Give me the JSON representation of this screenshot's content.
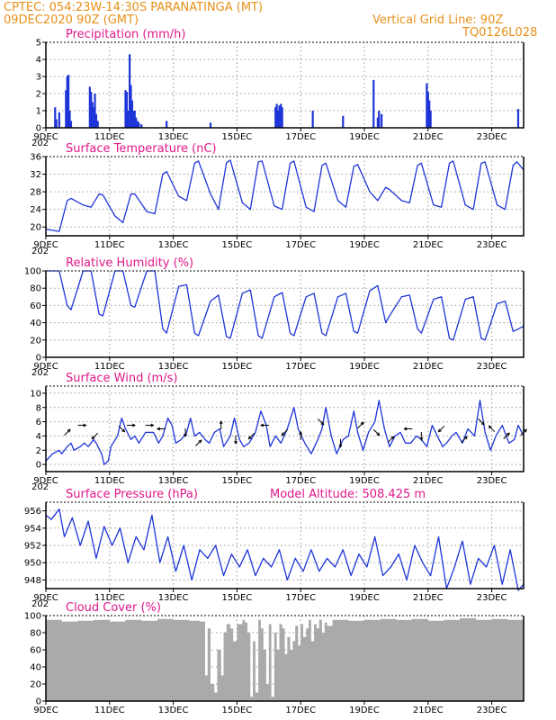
{
  "header": {
    "line1_left": "CPTEC:   054:23W-14:30S   PARANATINGA (MT)",
    "line2_left": "09DEC2020 90Z (GMT)",
    "line1_right": "Vertical Grid Line: 90Z",
    "line2_right": "TQ0126L028"
  },
  "colors": {
    "header": "#e8901a",
    "title": "#e0188a",
    "series": "#1e35d8",
    "arrow": "#000000",
    "cloud": "#aaaaaa"
  },
  "x_axis": {
    "day_min": 0,
    "day_max": 15,
    "tick_days": [
      0,
      2,
      4,
      6,
      8,
      10,
      12,
      14
    ],
    "tick_labels": [
      "9DEC",
      "11DEC",
      "13DEC",
      "15DEC",
      "17DEC",
      "19DEC",
      "21DEC",
      "23DEC"
    ],
    "year_fragment": "202"
  },
  "chart_data": [
    {
      "id": "precip",
      "type": "bar",
      "title": "Precipitation (mm/h)",
      "ylim": [
        0,
        5
      ],
      "yticks": [
        0,
        1,
        2,
        3,
        4,
        5
      ],
      "x": [
        0.29,
        0.33,
        0.42,
        0.63,
        0.67,
        0.71,
        0.75,
        0.79,
        1.38,
        1.42,
        1.46,
        1.5,
        1.54,
        1.58,
        1.63,
        2.5,
        2.54,
        2.58,
        2.63,
        2.67,
        2.71,
        2.75,
        2.79,
        2.83,
        2.88,
        2.92,
        3.0,
        3.79,
        5.17,
        7.21,
        7.25,
        7.29,
        7.33,
        7.38,
        7.42,
        8.38,
        9.33,
        10.29,
        10.42,
        10.46,
        10.54,
        11.96,
        12.0,
        12.04,
        12.08,
        14.83
      ],
      "values": [
        1.2,
        0.5,
        0.9,
        2.2,
        3.0,
        3.1,
        1.0,
        0.4,
        2.4,
        2.1,
        1.5,
        1.2,
        2.0,
        0.8,
        0.4,
        2.2,
        2.1,
        1.0,
        4.3,
        2.5,
        1.6,
        1.0,
        1.0,
        0.6,
        0.4,
        0.3,
        0.2,
        0.4,
        0.3,
        1.2,
        1.4,
        1.0,
        1.3,
        1.4,
        1.2,
        1.0,
        0.7,
        2.8,
        0.6,
        1.0,
        0.8,
        2.6,
        2.1,
        1.6,
        1.0,
        1.1
      ]
    },
    {
      "id": "temp",
      "type": "line",
      "title": "Surface Temperature (nC)",
      "ylim": [
        18,
        36
      ],
      "yticks": [
        20,
        24,
        28,
        32,
        36
      ],
      "x": [
        0.0,
        0.42,
        0.67,
        0.79,
        1.17,
        1.42,
        1.67,
        1.79,
        2.17,
        2.42,
        2.67,
        2.79,
        3.17,
        3.42,
        3.67,
        3.79,
        4.17,
        4.42,
        4.67,
        4.79,
        5.17,
        5.42,
        5.67,
        5.79,
        6.17,
        6.42,
        6.67,
        6.79,
        7.17,
        7.42,
        7.67,
        7.79,
        8.17,
        8.42,
        8.67,
        8.79,
        9.17,
        9.42,
        9.67,
        9.79,
        10.17,
        10.42,
        10.67,
        10.79,
        11.17,
        11.42,
        11.67,
        11.79,
        12.17,
        12.42,
        12.67,
        12.79,
        13.17,
        13.42,
        13.67,
        13.79,
        14.17,
        14.42,
        14.67,
        14.79,
        15.0
      ],
      "values": [
        19.5,
        19.0,
        26.0,
        26.5,
        25.0,
        24.5,
        27.5,
        27.3,
        22.5,
        21.0,
        27.5,
        27.5,
        23.5,
        23.0,
        32.0,
        32.6,
        27.0,
        26.0,
        34.5,
        35.0,
        27.5,
        24.0,
        34.6,
        35.2,
        25.5,
        24.0,
        34.8,
        35.0,
        24.8,
        24.0,
        34.5,
        35.0,
        24.5,
        23.5,
        34.0,
        34.5,
        26.0,
        24.5,
        33.8,
        34.2,
        28.0,
        26.0,
        29.0,
        28.5,
        26.0,
        25.5,
        34.0,
        34.5,
        25.0,
        24.5,
        34.5,
        35.0,
        25.0,
        24.0,
        34.5,
        34.8,
        25.0,
        24.0,
        34.0,
        34.8,
        33.0
      ]
    },
    {
      "id": "humidity",
      "type": "line",
      "title": "Relative Humidity (%)",
      "ylim": [
        0,
        100
      ],
      "yticks": [
        0,
        20,
        40,
        60,
        80,
        100
      ],
      "x": [
        0.0,
        0.42,
        0.67,
        0.79,
        1.17,
        1.42,
        1.67,
        1.79,
        2.17,
        2.42,
        2.67,
        2.79,
        3.17,
        3.42,
        3.67,
        3.79,
        4.17,
        4.42,
        4.67,
        4.79,
        5.17,
        5.42,
        5.67,
        5.79,
        6.17,
        6.42,
        6.67,
        6.79,
        7.17,
        7.42,
        7.67,
        7.79,
        8.17,
        8.42,
        8.67,
        8.79,
        9.17,
        9.42,
        9.67,
        9.79,
        10.17,
        10.42,
        10.67,
        10.79,
        11.17,
        11.42,
        11.67,
        11.79,
        12.17,
        12.42,
        12.67,
        12.79,
        13.17,
        13.42,
        13.67,
        13.79,
        14.17,
        14.42,
        14.67,
        14.79,
        15.0
      ],
      "values": [
        100,
        100,
        60,
        55,
        100,
        100,
        50,
        48,
        100,
        100,
        60,
        58,
        100,
        100,
        33,
        28,
        82,
        84,
        28,
        25,
        65,
        72,
        24,
        22,
        74,
        78,
        25,
        22,
        70,
        75,
        28,
        25,
        70,
        74,
        28,
        25,
        70,
        74,
        30,
        28,
        77,
        83,
        40,
        48,
        70,
        72,
        33,
        28,
        67,
        70,
        22,
        20,
        67,
        70,
        22,
        20,
        62,
        65,
        30,
        32,
        36
      ]
    },
    {
      "id": "wind",
      "type": "line",
      "title": "Surface Wind (m/s)",
      "ylim": [
        -1,
        11
      ],
      "yticks": [
        0,
        2,
        4,
        6,
        8,
        10
      ],
      "x": [
        0.0,
        0.21,
        0.42,
        0.5,
        0.67,
        0.79,
        0.88,
        1.08,
        1.21,
        1.33,
        1.5,
        1.58,
        1.75,
        1.83,
        1.96,
        2.04,
        2.25,
        2.38,
        2.5,
        2.67,
        2.79,
        2.92,
        3.13,
        3.38,
        3.54,
        3.67,
        3.83,
        3.96,
        4.08,
        4.25,
        4.42,
        4.54,
        4.67,
        4.83,
        5.0,
        5.13,
        5.29,
        5.46,
        5.58,
        5.79,
        5.92,
        6.08,
        6.21,
        6.38,
        6.58,
        6.75,
        6.92,
        7.04,
        7.21,
        7.38,
        7.58,
        7.79,
        7.92,
        8.13,
        8.33,
        8.54,
        8.67,
        8.79,
        8.96,
        9.13,
        9.33,
        9.5,
        9.67,
        9.79,
        9.96,
        10.13,
        10.33,
        10.46,
        10.63,
        10.79,
        10.96,
        11.13,
        11.29,
        11.46,
        11.63,
        11.79,
        11.96,
        12.13,
        12.29,
        12.46,
        12.58,
        12.75,
        12.88,
        13.08,
        13.25,
        13.46,
        13.63,
        13.79,
        13.96,
        14.13,
        14.33,
        14.54,
        14.71,
        14.83,
        15.0
      ],
      "values": [
        0.5,
        1.5,
        2.0,
        1.5,
        2.5,
        3.0,
        2.0,
        2.5,
        3.0,
        2.5,
        3.5,
        3.0,
        1.5,
        0.0,
        0.5,
        2.5,
        4.0,
        6.5,
        5.0,
        3.5,
        4.0,
        3.0,
        4.5,
        4.5,
        3.0,
        4.0,
        6.5,
        5.5,
        3.0,
        3.5,
        4.5,
        6.5,
        4.0,
        4.5,
        3.5,
        3.0,
        4.5,
        5.0,
        2.5,
        4.0,
        6.5,
        3.5,
        2.5,
        3.0,
        4.5,
        7.5,
        5.5,
        2.5,
        4.0,
        3.0,
        5.0,
        8.0,
        5.0,
        3.0,
        1.5,
        3.5,
        5.0,
        8.0,
        4.0,
        1.5,
        3.5,
        4.0,
        7.5,
        4.5,
        2.0,
        4.5,
        6.0,
        9.0,
        5.0,
        2.5,
        4.0,
        4.5,
        3.0,
        3.0,
        4.0,
        3.5,
        2.5,
        5.5,
        4.0,
        2.5,
        3.0,
        4.0,
        4.5,
        3.0,
        5.0,
        4.0,
        9.0,
        4.5,
        2.0,
        4.0,
        5.5,
        3.0,
        3.5,
        5.5,
        4.0
      ],
      "arrows": {
        "x": [
          0.67,
          1.13,
          1.54,
          2.38,
          2.67,
          3.25,
          3.63,
          4.38,
          4.79,
          5.5,
          5.96,
          6.46,
          6.88,
          7.5,
          8.0,
          8.63,
          9.25,
          9.88,
          10.38,
          10.83,
          11.38,
          11.79,
          12.42,
          13.13,
          13.67,
          14.0,
          14.46,
          15.0
        ],
        "y": [
          4.5,
          5.5,
          4.0,
          5.0,
          5.5,
          5.5,
          5.0,
          4.5,
          3.0,
          5.5,
          3.5,
          4.0,
          5.5,
          4.5,
          4.0,
          6.0,
          3.0,
          5.5,
          4.5,
          3.5,
          5.0,
          4.0,
          5.0,
          3.5,
          6.0,
          5.0,
          4.0,
          4.5
        ],
        "dir_deg": [
          45,
          0,
          225,
          315,
          0,
          0,
          180,
          270,
          45,
          90,
          270,
          225,
          180,
          225,
          90,
          315,
          270,
          45,
          315,
          45,
          180,
          270,
          225,
          45,
          315,
          135,
          45,
          45
        ]
      }
    },
    {
      "id": "pressure",
      "type": "line",
      "title": "Surface Pressure (hPa)",
      "annotation": "Model Altitude: 508.425 m",
      "ylim": [
        947,
        957
      ],
      "yticks": [
        948,
        950,
        952,
        954,
        956
      ],
      "x": [
        0.0,
        0.17,
        0.42,
        0.58,
        0.83,
        1.08,
        1.33,
        1.58,
        1.83,
        2.08,
        2.33,
        2.58,
        2.83,
        3.08,
        3.33,
        3.58,
        3.83,
        4.08,
        4.33,
        4.58,
        4.83,
        5.08,
        5.33,
        5.58,
        5.83,
        6.08,
        6.33,
        6.58,
        6.83,
        7.08,
        7.33,
        7.58,
        7.83,
        8.08,
        8.33,
        8.58,
        8.83,
        9.08,
        9.33,
        9.58,
        9.83,
        10.08,
        10.33,
        10.58,
        10.83,
        11.08,
        11.33,
        11.58,
        11.83,
        12.08,
        12.33,
        12.58,
        12.83,
        13.08,
        13.33,
        13.58,
        13.83,
        14.08,
        14.33,
        14.58,
        14.83,
        15.0
      ],
      "values": [
        955.5,
        955.0,
        956.2,
        953.0,
        955.2,
        952.0,
        954.8,
        950.5,
        954.2,
        952.0,
        954.0,
        950.0,
        953.0,
        951.5,
        955.5,
        950.0,
        953.0,
        949.0,
        952.0,
        948.0,
        951.5,
        950.5,
        952.0,
        948.5,
        951.0,
        949.5,
        951.5,
        948.5,
        950.5,
        949.5,
        951.5,
        948.0,
        950.5,
        949.0,
        951.5,
        949.0,
        950.5,
        949.5,
        951.5,
        948.5,
        951.0,
        949.5,
        953.0,
        948.5,
        949.5,
        951.0,
        948.0,
        952.0,
        950.0,
        948.5,
        953.0,
        947.0,
        949.5,
        952.5,
        947.5,
        950.5,
        949.5,
        952.0,
        947.5,
        951.5,
        946.8,
        947.5
      ]
    },
    {
      "id": "cloud",
      "type": "area",
      "title": "Cloud Cover (%)",
      "ylim": [
        0,
        100
      ],
      "yticks": [
        0,
        20,
        40,
        60,
        80,
        100
      ],
      "x": [
        0.0,
        0.5,
        1.0,
        1.5,
        2.0,
        2.5,
        3.0,
        3.5,
        4.0,
        4.5,
        4.83,
        5.0,
        5.08,
        5.17,
        5.29,
        5.38,
        5.5,
        5.58,
        5.67,
        5.79,
        5.88,
        6.0,
        6.17,
        6.25,
        6.33,
        6.42,
        6.5,
        6.58,
        6.67,
        6.75,
        6.83,
        6.92,
        7.0,
        7.08,
        7.17,
        7.25,
        7.33,
        7.42,
        7.5,
        7.58,
        7.67,
        7.75,
        7.83,
        7.92,
        8.0,
        8.08,
        8.17,
        8.25,
        8.33,
        8.42,
        8.5,
        8.58,
        8.67,
        8.75,
        8.83,
        9.0,
        9.5,
        10.0,
        10.5,
        11.0,
        11.5,
        12.0,
        12.5,
        13.0,
        13.5,
        14.0,
        14.5,
        15.0
      ],
      "values": [
        95,
        93,
        94,
        95,
        93,
        95,
        94,
        96,
        95,
        94,
        93,
        30,
        85,
        20,
        10,
        60,
        30,
        80,
        90,
        85,
        70,
        90,
        95,
        92,
        80,
        5,
        70,
        10,
        95,
        85,
        60,
        20,
        90,
        5,
        80,
        60,
        90,
        85,
        55,
        75,
        60,
        70,
        88,
        65,
        90,
        75,
        85,
        95,
        70,
        90,
        85,
        95,
        80,
        92,
        88,
        95,
        94,
        95,
        96,
        95,
        96,
        94,
        95,
        97,
        95,
        96,
        95,
        96
      ]
    }
  ]
}
